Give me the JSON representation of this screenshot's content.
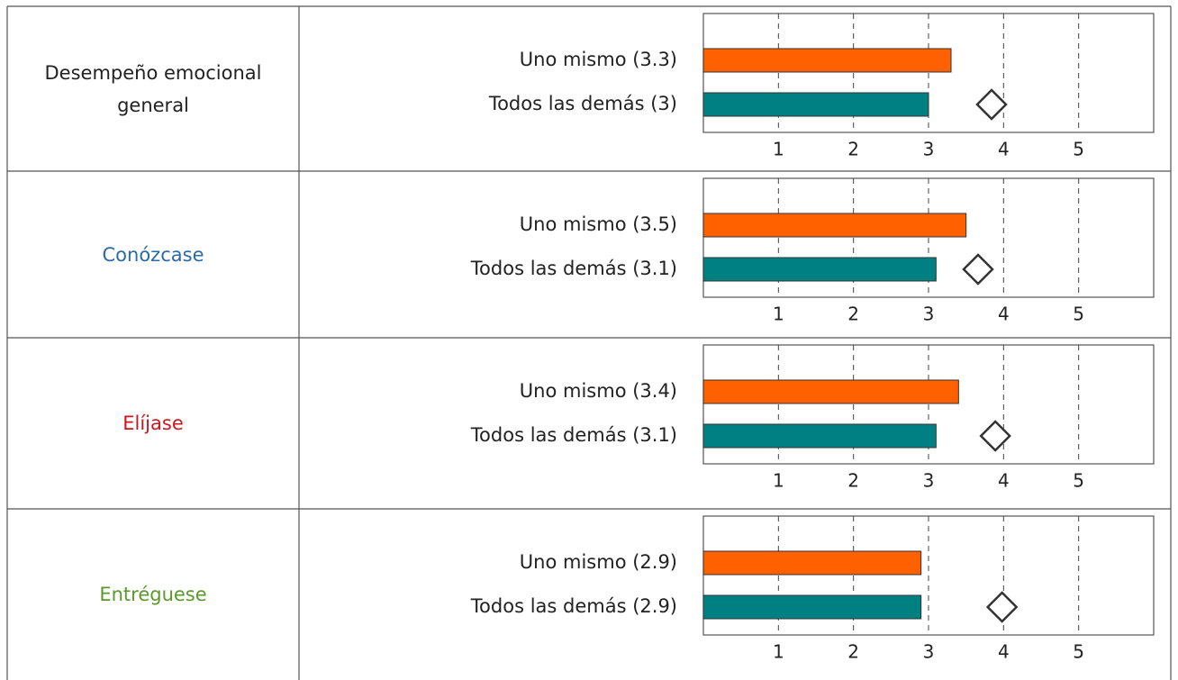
{
  "table": {
    "rows": [
      {
        "label": "Desempeño emocional general",
        "label_color": "#222222",
        "chart": {
          "type": "bar",
          "categories": [
            "Uno mismo (3.3)",
            "Todos las demás (3)"
          ],
          "values": [
            3.3,
            3
          ],
          "colors": [
            "#ff6000",
            "#008080"
          ],
          "marker": 3.84,
          "xlim": [
            0,
            6
          ],
          "xticks": [
            1,
            2,
            3,
            4,
            5
          ],
          "grid": true
        }
      },
      {
        "label": "Conózcase",
        "label_color": "#2a6aa8",
        "chart": {
          "type": "bar",
          "categories": [
            "Uno mismo (3.5)",
            "Todos las demás (3.1)"
          ],
          "values": [
            3.5,
            3.1
          ],
          "colors": [
            "#ff6000",
            "#008080"
          ],
          "marker": 3.66,
          "xlim": [
            0,
            6
          ],
          "xticks": [
            1,
            2,
            3,
            4,
            5
          ],
          "grid": true
        }
      },
      {
        "label": "Elíjase",
        "label_color": "#d0141c",
        "chart": {
          "type": "bar",
          "categories": [
            "Uno mismo (3.4)",
            "Todos las demás (3.1)"
          ],
          "values": [
            3.4,
            3.1
          ],
          "colors": [
            "#ff6000",
            "#008080"
          ],
          "marker": 3.89,
          "xlim": [
            0,
            6
          ],
          "xticks": [
            1,
            2,
            3,
            4,
            5
          ],
          "grid": true
        }
      },
      {
        "label": "Entréguese",
        "label_color": "#5a9a2a",
        "chart": {
          "type": "bar",
          "categories": [
            "Uno mismo (2.9)",
            "Todos las demás (2.9)"
          ],
          "values": [
            2.9,
            2.9
          ],
          "colors": [
            "#ff6000",
            "#008080"
          ],
          "marker": 3.98,
          "xlim": [
            0,
            6
          ],
          "xticks": [
            1,
            2,
            3,
            4,
            5
          ],
          "grid": true
        }
      }
    ]
  }
}
